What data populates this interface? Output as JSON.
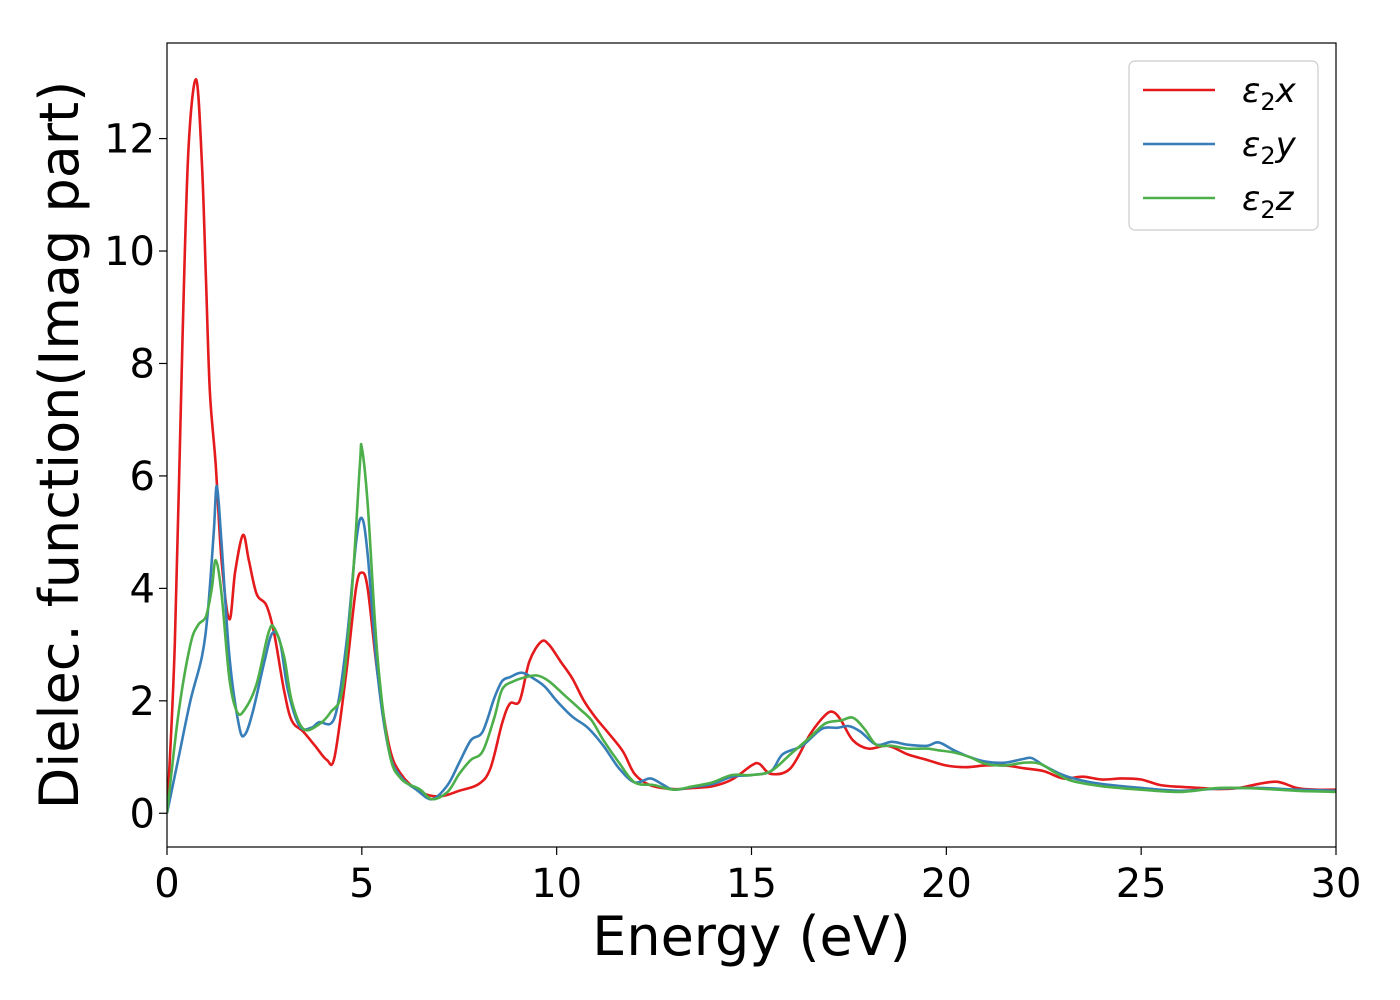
{
  "chart_data": {
    "type": "line",
    "xlabel": "Energy (eV)",
    "ylabel": "Dielec. function(Imag part)",
    "xlim": [
      0,
      30
    ],
    "ylim": [
      -0.6,
      13.7
    ],
    "xticks": [
      "0",
      "5",
      "10",
      "15",
      "20",
      "25",
      "30"
    ],
    "yticks": [
      "0",
      "2",
      "4",
      "6",
      "8",
      "10",
      "12"
    ],
    "grid": false,
    "legend_position": "top-right",
    "series": [
      {
        "name": "x",
        "legend_main": "ε",
        "legend_sub": "2",
        "legend_suffix": "x",
        "color": "#e41a1c",
        "points": [
          [
            0,
            0
          ],
          [
            0.2,
            3.0
          ],
          [
            0.4,
            8.5
          ],
          [
            0.55,
            11.8
          ],
          [
            0.75,
            13.05
          ],
          [
            0.9,
            11.5
          ],
          [
            1.0,
            9.5
          ],
          [
            1.1,
            7.5
          ],
          [
            1.25,
            6.2
          ],
          [
            1.4,
            4.5
          ],
          [
            1.6,
            3.45
          ],
          [
            1.75,
            4.3
          ],
          [
            1.95,
            4.95
          ],
          [
            2.1,
            4.5
          ],
          [
            2.3,
            3.9
          ],
          [
            2.55,
            3.7
          ],
          [
            2.75,
            3.2
          ],
          [
            3.0,
            2.2
          ],
          [
            3.2,
            1.65
          ],
          [
            3.5,
            1.45
          ],
          [
            3.8,
            1.2
          ],
          [
            4.1,
            0.95
          ],
          [
            4.3,
            1.0
          ],
          [
            4.6,
            2.5
          ],
          [
            4.85,
            4.0
          ],
          [
            5.0,
            4.28
          ],
          [
            5.15,
            4.0
          ],
          [
            5.4,
            2.5
          ],
          [
            5.7,
            1.2
          ],
          [
            6.0,
            0.7
          ],
          [
            6.5,
            0.38
          ],
          [
            7.0,
            0.3
          ],
          [
            7.5,
            0.4
          ],
          [
            8.0,
            0.52
          ],
          [
            8.3,
            0.8
          ],
          [
            8.6,
            1.6
          ],
          [
            8.8,
            1.95
          ],
          [
            9.05,
            2.0
          ],
          [
            9.3,
            2.7
          ],
          [
            9.6,
            3.05
          ],
          [
            9.8,
            3.0
          ],
          [
            10.1,
            2.7
          ],
          [
            10.4,
            2.4
          ],
          [
            10.7,
            2.0
          ],
          [
            11.0,
            1.7
          ],
          [
            11.3,
            1.45
          ],
          [
            11.7,
            1.1
          ],
          [
            12.0,
            0.7
          ],
          [
            12.4,
            0.5
          ],
          [
            13.0,
            0.43
          ],
          [
            13.5,
            0.45
          ],
          [
            14.0,
            0.48
          ],
          [
            14.5,
            0.6
          ],
          [
            15.0,
            0.85
          ],
          [
            15.2,
            0.88
          ],
          [
            15.5,
            0.7
          ],
          [
            16.0,
            0.8
          ],
          [
            16.5,
            1.4
          ],
          [
            16.9,
            1.75
          ],
          [
            17.1,
            1.8
          ],
          [
            17.3,
            1.65
          ],
          [
            17.6,
            1.3
          ],
          [
            18.0,
            1.15
          ],
          [
            18.5,
            1.2
          ],
          [
            19.0,
            1.05
          ],
          [
            19.5,
            0.95
          ],
          [
            20.0,
            0.85
          ],
          [
            20.5,
            0.82
          ],
          [
            21.0,
            0.85
          ],
          [
            21.5,
            0.85
          ],
          [
            22.0,
            0.8
          ],
          [
            22.5,
            0.75
          ],
          [
            23.0,
            0.62
          ],
          [
            23.5,
            0.65
          ],
          [
            24.0,
            0.6
          ],
          [
            24.5,
            0.62
          ],
          [
            25.0,
            0.6
          ],
          [
            25.5,
            0.5
          ],
          [
            26.0,
            0.47
          ],
          [
            26.5,
            0.45
          ],
          [
            27.0,
            0.43
          ],
          [
            27.5,
            0.45
          ],
          [
            28.0,
            0.52
          ],
          [
            28.5,
            0.56
          ],
          [
            29.0,
            0.45
          ],
          [
            29.5,
            0.42
          ],
          [
            30.0,
            0.42
          ]
        ]
      },
      {
        "name": "y",
        "legend_main": "ε",
        "legend_sub": "2",
        "legend_suffix": "y",
        "color": "#377eb8",
        "points": [
          [
            0,
            0
          ],
          [
            0.3,
            1.0
          ],
          [
            0.6,
            2.0
          ],
          [
            0.9,
            2.8
          ],
          [
            1.05,
            3.6
          ],
          [
            1.2,
            5.0
          ],
          [
            1.28,
            5.82
          ],
          [
            1.4,
            4.8
          ],
          [
            1.6,
            2.8
          ],
          [
            1.85,
            1.55
          ],
          [
            2.0,
            1.4
          ],
          [
            2.2,
            1.8
          ],
          [
            2.5,
            2.7
          ],
          [
            2.7,
            3.2
          ],
          [
            2.9,
            3.05
          ],
          [
            3.1,
            2.2
          ],
          [
            3.4,
            1.55
          ],
          [
            3.7,
            1.52
          ],
          [
            3.9,
            1.62
          ],
          [
            4.3,
            1.7
          ],
          [
            4.6,
            3.0
          ],
          [
            4.85,
            4.8
          ],
          [
            5.0,
            5.25
          ],
          [
            5.15,
            4.6
          ],
          [
            5.4,
            2.5
          ],
          [
            5.7,
            1.1
          ],
          [
            6.0,
            0.65
          ],
          [
            6.4,
            0.42
          ],
          [
            6.8,
            0.25
          ],
          [
            7.2,
            0.5
          ],
          [
            7.5,
            0.9
          ],
          [
            7.8,
            1.3
          ],
          [
            8.1,
            1.45
          ],
          [
            8.4,
            2.05
          ],
          [
            8.6,
            2.35
          ],
          [
            8.8,
            2.42
          ],
          [
            9.1,
            2.5
          ],
          [
            9.4,
            2.4
          ],
          [
            9.7,
            2.25
          ],
          [
            10.0,
            2.0
          ],
          [
            10.4,
            1.72
          ],
          [
            10.8,
            1.52
          ],
          [
            11.2,
            1.2
          ],
          [
            11.6,
            0.8
          ],
          [
            12.0,
            0.55
          ],
          [
            12.4,
            0.62
          ],
          [
            12.7,
            0.52
          ],
          [
            13.0,
            0.42
          ],
          [
            13.5,
            0.47
          ],
          [
            14.0,
            0.52
          ],
          [
            14.5,
            0.65
          ],
          [
            15.0,
            0.68
          ],
          [
            15.5,
            0.75
          ],
          [
            15.8,
            1.05
          ],
          [
            16.3,
            1.2
          ],
          [
            16.8,
            1.5
          ],
          [
            17.2,
            1.52
          ],
          [
            17.5,
            1.55
          ],
          [
            17.8,
            1.45
          ],
          [
            18.2,
            1.22
          ],
          [
            18.6,
            1.27
          ],
          [
            19.0,
            1.22
          ],
          [
            19.5,
            1.2
          ],
          [
            19.8,
            1.26
          ],
          [
            20.2,
            1.12
          ],
          [
            20.6,
            1.0
          ],
          [
            21.0,
            0.92
          ],
          [
            21.5,
            0.9
          ],
          [
            22.0,
            0.97
          ],
          [
            22.2,
            0.98
          ],
          [
            22.5,
            0.85
          ],
          [
            23.0,
            0.68
          ],
          [
            23.5,
            0.58
          ],
          [
            24.0,
            0.52
          ],
          [
            25.0,
            0.45
          ],
          [
            26.0,
            0.4
          ],
          [
            27.0,
            0.44
          ],
          [
            28.0,
            0.45
          ],
          [
            29.0,
            0.42
          ],
          [
            30.0,
            0.4
          ]
        ]
      },
      {
        "name": "z",
        "legend_main": "ε",
        "legend_sub": "2",
        "legend_suffix": "z",
        "color": "#4daf4a",
        "points": [
          [
            0,
            0
          ],
          [
            0.3,
            1.8
          ],
          [
            0.6,
            3.0
          ],
          [
            0.8,
            3.35
          ],
          [
            1.0,
            3.5
          ],
          [
            1.15,
            4.0
          ],
          [
            1.25,
            4.5
          ],
          [
            1.4,
            3.9
          ],
          [
            1.6,
            2.4
          ],
          [
            1.8,
            1.8
          ],
          [
            2.0,
            1.85
          ],
          [
            2.3,
            2.3
          ],
          [
            2.6,
            3.2
          ],
          [
            2.75,
            3.3
          ],
          [
            3.0,
            2.8
          ],
          [
            3.2,
            2.0
          ],
          [
            3.5,
            1.5
          ],
          [
            3.9,
            1.58
          ],
          [
            4.2,
            1.8
          ],
          [
            4.5,
            2.2
          ],
          [
            4.75,
            4.0
          ],
          [
            4.95,
            6.2
          ],
          [
            5.0,
            6.5
          ],
          [
            5.15,
            5.5
          ],
          [
            5.4,
            2.8
          ],
          [
            5.7,
            1.1
          ],
          [
            6.0,
            0.62
          ],
          [
            6.5,
            0.42
          ],
          [
            6.8,
            0.25
          ],
          [
            7.2,
            0.38
          ],
          [
            7.5,
            0.7
          ],
          [
            7.8,
            0.95
          ],
          [
            8.1,
            1.1
          ],
          [
            8.4,
            1.7
          ],
          [
            8.6,
            2.2
          ],
          [
            8.9,
            2.35
          ],
          [
            9.2,
            2.42
          ],
          [
            9.5,
            2.45
          ],
          [
            9.8,
            2.35
          ],
          [
            10.2,
            2.1
          ],
          [
            10.6,
            1.85
          ],
          [
            10.9,
            1.65
          ],
          [
            11.2,
            1.3
          ],
          [
            11.6,
            0.9
          ],
          [
            12.0,
            0.55
          ],
          [
            12.5,
            0.5
          ],
          [
            13.0,
            0.42
          ],
          [
            13.5,
            0.48
          ],
          [
            14.0,
            0.55
          ],
          [
            14.5,
            0.68
          ],
          [
            15.0,
            0.68
          ],
          [
            15.5,
            0.75
          ],
          [
            16.0,
            1.05
          ],
          [
            16.5,
            1.35
          ],
          [
            16.9,
            1.6
          ],
          [
            17.3,
            1.65
          ],
          [
            17.6,
            1.7
          ],
          [
            17.9,
            1.5
          ],
          [
            18.2,
            1.22
          ],
          [
            18.6,
            1.2
          ],
          [
            19.0,
            1.15
          ],
          [
            19.5,
            1.15
          ],
          [
            19.8,
            1.12
          ],
          [
            20.2,
            1.08
          ],
          [
            20.6,
            1.0
          ],
          [
            21.0,
            0.88
          ],
          [
            21.5,
            0.85
          ],
          [
            22.0,
            0.9
          ],
          [
            22.4,
            0.88
          ],
          [
            22.8,
            0.72
          ],
          [
            23.2,
            0.58
          ],
          [
            24.0,
            0.48
          ],
          [
            25.0,
            0.42
          ],
          [
            26.0,
            0.38
          ],
          [
            27.0,
            0.45
          ],
          [
            28.0,
            0.44
          ],
          [
            29.0,
            0.4
          ],
          [
            30.0,
            0.38
          ]
        ]
      }
    ]
  }
}
